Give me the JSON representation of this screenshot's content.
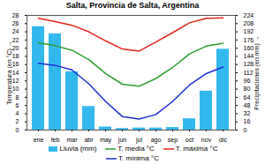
{
  "chart_data": {
    "type": "bar",
    "title": "Salta, Provincia de Salta, Argentina",
    "categories": [
      "ene",
      "feb",
      "mar",
      "abr",
      "may",
      "jun",
      "jul",
      "ago",
      "sep",
      "oct",
      "nov",
      "dic"
    ],
    "series": [
      {
        "name": "Lluvia (mm)",
        "type": "bar",
        "axis": "y2",
        "color": "#33b8ee",
        "values": [
          202,
          188,
          114,
          46,
          6,
          3,
          4,
          4,
          5,
          22,
          76,
          158
        ]
      },
      {
        "name": "T. media °C",
        "type": "line",
        "color": "#2e9e2e",
        "values": [
          21.3,
          20.6,
          19.5,
          17.2,
          13.8,
          11.2,
          10.7,
          12.6,
          15.3,
          18.6,
          20.5,
          21.2
        ]
      },
      {
        "name": "T. máxima °C",
        "type": "line",
        "color": "#e8221b",
        "values": [
          27.3,
          26.5,
          25.6,
          24,
          21.8,
          19.8,
          19.3,
          21.5,
          23.8,
          26.2,
          27.3,
          27.4
        ]
      },
      {
        "name": "T. mínima °C",
        "type": "line",
        "color": "#1f2fd6",
        "values": [
          16.3,
          15.8,
          14.7,
          11.3,
          7,
          3.3,
          2.7,
          3.8,
          7,
          11,
          13.8,
          15.4
        ]
      }
    ],
    "y_label": "Temperatura (en °C)",
    "ylim": [
      0,
      28
    ],
    "yticks": [
      0,
      2,
      4,
      6,
      8,
      10,
      12,
      14,
      16,
      18,
      20,
      22,
      24,
      26,
      28
    ],
    "y2_label": "Precipitaciones (en mm)",
    "y2lim": [
      0,
      224
    ],
    "y2ticks": [
      0,
      16,
      32,
      48,
      64,
      80,
      96,
      112,
      128,
      144,
      160,
      176,
      192,
      208,
      224
    ],
    "grid": false,
    "legend": "bottom"
  }
}
